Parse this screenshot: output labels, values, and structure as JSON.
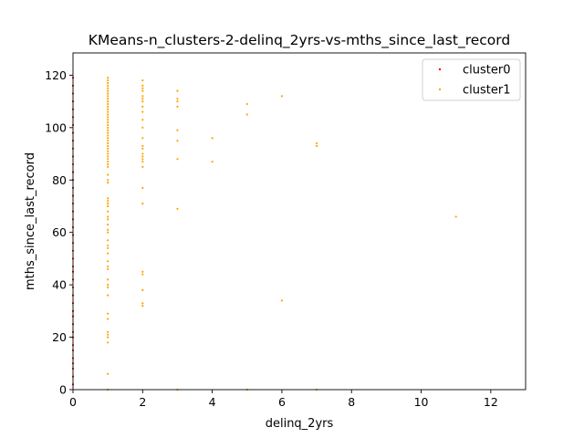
{
  "chart_data": {
    "type": "scatter",
    "title": "KMeans-n_clusters-2-delinq_2yrs-vs-mths_since_last_record",
    "xlabel": "delinq_2yrs",
    "ylabel": "mths_since_last_record",
    "xlim": [
      0,
      13
    ],
    "ylim": [
      0,
      128.5
    ],
    "xticks": [
      0,
      2,
      4,
      6,
      8,
      10,
      12
    ],
    "yticks": [
      0,
      20,
      40,
      60,
      80,
      100,
      120
    ],
    "grid": false,
    "legend": "top-right",
    "series": [
      {
        "name": "cluster0",
        "color": "#ff0000",
        "points": [
          [
            0,
            2
          ],
          [
            0,
            5
          ],
          [
            0,
            8
          ],
          [
            0,
            10
          ],
          [
            0,
            12
          ],
          [
            0,
            15
          ],
          [
            0,
            17
          ],
          [
            0,
            20
          ],
          [
            0,
            22
          ],
          [
            0,
            25
          ],
          [
            0,
            28
          ],
          [
            0,
            30
          ],
          [
            0,
            33
          ],
          [
            0,
            36
          ],
          [
            0,
            39
          ],
          [
            0,
            42
          ],
          [
            0,
            45
          ],
          [
            0,
            47
          ],
          [
            0,
            50
          ],
          [
            0,
            53
          ],
          [
            0,
            56
          ],
          [
            0,
            59
          ],
          [
            0,
            62
          ],
          [
            0,
            65
          ],
          [
            0,
            68
          ],
          [
            0,
            71
          ],
          [
            0,
            74
          ],
          [
            0,
            77
          ],
          [
            0,
            80
          ],
          [
            0,
            83
          ],
          [
            0,
            86
          ],
          [
            0,
            89
          ],
          [
            0,
            92
          ],
          [
            0,
            95
          ],
          [
            0,
            98
          ],
          [
            0,
            101
          ],
          [
            0,
            104
          ],
          [
            0,
            107
          ],
          [
            0,
            110
          ],
          [
            0,
            113
          ],
          [
            0,
            116
          ],
          [
            0,
            119
          ]
        ]
      },
      {
        "name": "cluster1",
        "color": "#ffa500",
        "points": [
          [
            1,
            0
          ],
          [
            1,
            6
          ],
          [
            1,
            18
          ],
          [
            1,
            20
          ],
          [
            1,
            21
          ],
          [
            1,
            22
          ],
          [
            1,
            27
          ],
          [
            1,
            29
          ],
          [
            1,
            36
          ],
          [
            1,
            39
          ],
          [
            1,
            40
          ],
          [
            1,
            42
          ],
          [
            1,
            46
          ],
          [
            1,
            47
          ],
          [
            1,
            49
          ],
          [
            1,
            52
          ],
          [
            1,
            54
          ],
          [
            1,
            55
          ],
          [
            1,
            57
          ],
          [
            1,
            60
          ],
          [
            1,
            61
          ],
          [
            1,
            63
          ],
          [
            1,
            65
          ],
          [
            1,
            66
          ],
          [
            1,
            68
          ],
          [
            1,
            70
          ],
          [
            1,
            71
          ],
          [
            1,
            72
          ],
          [
            1,
            73
          ],
          [
            1,
            79
          ],
          [
            1,
            80
          ],
          [
            1,
            82
          ],
          [
            1,
            85
          ],
          [
            1,
            86
          ],
          [
            1,
            87
          ],
          [
            1,
            88
          ],
          [
            1,
            89
          ],
          [
            1,
            90
          ],
          [
            1,
            91
          ],
          [
            1,
            92
          ],
          [
            1,
            93
          ],
          [
            1,
            94
          ],
          [
            1,
            95
          ],
          [
            1,
            96
          ],
          [
            1,
            97
          ],
          [
            1,
            98
          ],
          [
            1,
            99
          ],
          [
            1,
            100
          ],
          [
            1,
            101
          ],
          [
            1,
            102
          ],
          [
            1,
            103
          ],
          [
            1,
            104
          ],
          [
            1,
            105
          ],
          [
            1,
            106
          ],
          [
            1,
            107
          ],
          [
            1,
            108
          ],
          [
            1,
            109
          ],
          [
            1,
            110
          ],
          [
            1,
            111
          ],
          [
            1,
            112
          ],
          [
            1,
            113
          ],
          [
            1,
            114
          ],
          [
            1,
            115
          ],
          [
            1,
            116
          ],
          [
            1,
            117
          ],
          [
            1,
            118
          ],
          [
            1,
            119
          ],
          [
            2,
            32
          ],
          [
            2,
            33
          ],
          [
            2,
            38
          ],
          [
            2,
            44
          ],
          [
            2,
            45
          ],
          [
            2,
            71
          ],
          [
            2,
            77
          ],
          [
            2,
            85
          ],
          [
            2,
            87
          ],
          [
            2,
            88
          ],
          [
            2,
            89
          ],
          [
            2,
            90
          ],
          [
            2,
            92
          ],
          [
            2,
            93
          ],
          [
            2,
            96
          ],
          [
            2,
            100
          ],
          [
            2,
            103
          ],
          [
            2,
            106
          ],
          [
            2,
            108
          ],
          [
            2,
            110
          ],
          [
            2,
            111
          ],
          [
            2,
            112
          ],
          [
            2,
            114
          ],
          [
            2,
            115
          ],
          [
            2,
            116
          ],
          [
            2,
            118
          ],
          [
            3,
            0
          ],
          [
            3,
            69
          ],
          [
            3,
            88
          ],
          [
            3,
            95
          ],
          [
            3,
            99
          ],
          [
            3,
            108
          ],
          [
            3,
            110
          ],
          [
            3,
            111
          ],
          [
            3,
            114
          ],
          [
            4,
            87
          ],
          [
            4,
            96
          ],
          [
            5,
            0
          ],
          [
            5,
            105
          ],
          [
            5,
            109
          ],
          [
            6,
            34
          ],
          [
            6,
            112
          ],
          [
            7,
            0
          ],
          [
            7,
            93
          ],
          [
            7,
            94
          ],
          [
            11,
            66
          ]
        ]
      }
    ]
  }
}
